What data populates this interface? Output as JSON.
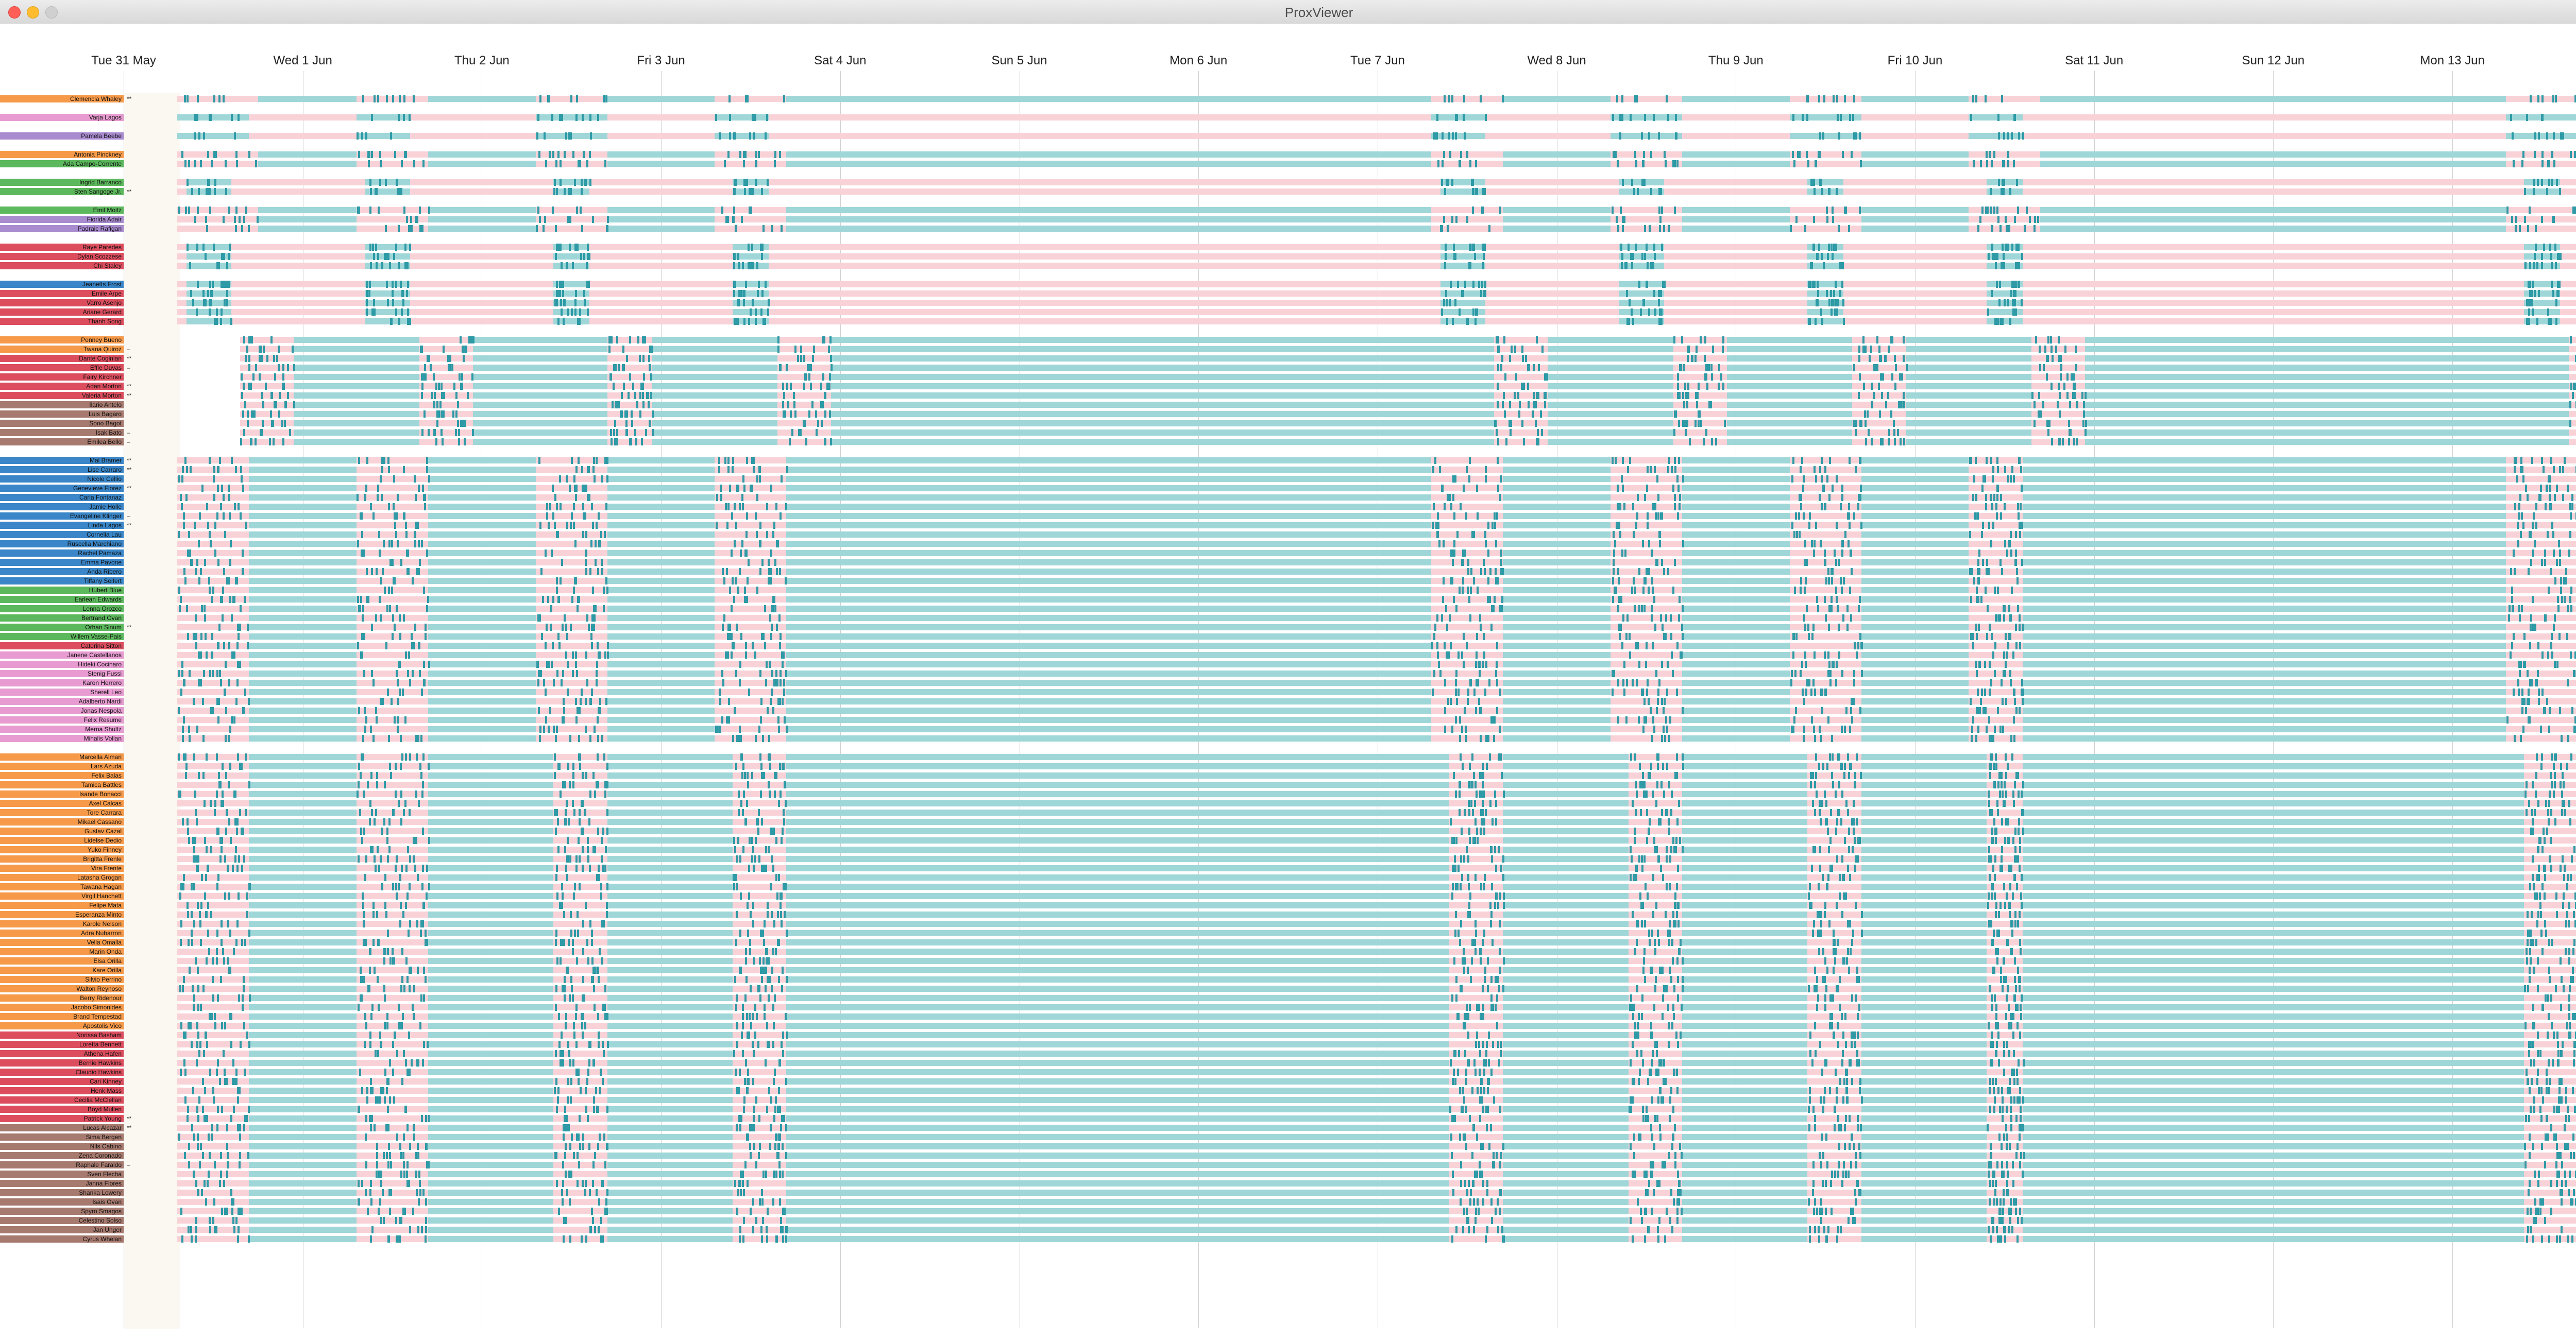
{
  "window": {
    "title": "ProxViewer"
  },
  "timeline": {
    "dates": [
      "Tue 31 May",
      "Wed 1 Jun",
      "Thu 2 Jun",
      "Fri 3 Jun",
      "Sat 4 Jun",
      "Sun 5 Jun",
      "Mon 6 Jun",
      "Tue 7 Jun",
      "Wed 8 Jun",
      "Thu 9 Jun",
      "Fri 10 Jun",
      "Sat 11 Jun",
      "Sun 12 Jun",
      "Mon 13 Jun"
    ],
    "colors": {
      "present": "#9fd6d8",
      "absent": "#f9d2d8",
      "contact": "#2d9aa6",
      "background": "#ffffff"
    }
  },
  "group_colors": {
    "orange": "#f69a4a",
    "pink": "#e79bd1",
    "purple": "#a98bd0",
    "green": "#5cb85c",
    "red": "#dc4e5e",
    "blue": "#3a86c8",
    "brown": "#a77a6f"
  },
  "groups": [
    {
      "rows": [
        {
          "name": "Clemencia Whaley",
          "color": "orange",
          "marker": "**",
          "pattern": "A"
        }
      ]
    },
    {
      "rows": [
        {
          "name": "Varja Lagos",
          "color": "pink",
          "marker": "",
          "pattern": "B"
        }
      ]
    },
    {
      "rows": [
        {
          "name": "Pamela Beebe",
          "color": "purple",
          "marker": "",
          "pattern": "B"
        }
      ]
    },
    {
      "rows": [
        {
          "name": "Antonia Pinckney",
          "color": "orange",
          "marker": "",
          "pattern": "A"
        },
        {
          "name": "Ada Campo-Corrente",
          "color": "green",
          "marker": "",
          "pattern": "A"
        }
      ]
    },
    {
      "rows": [
        {
          "name": "Ingrid Barranco",
          "color": "green",
          "marker": "",
          "pattern": "C"
        },
        {
          "name": "Sten Sangoge Jr.",
          "color": "green",
          "marker": "**",
          "pattern": "C"
        }
      ]
    },
    {
      "rows": [
        {
          "name": "Emil Moitz",
          "color": "green",
          "marker": "",
          "pattern": "A"
        },
        {
          "name": "Fiorida Adair",
          "color": "purple",
          "marker": "",
          "pattern": "A"
        },
        {
          "name": "Padraic Rafigan",
          "color": "purple",
          "marker": "",
          "pattern": "A"
        }
      ]
    },
    {
      "rows": [
        {
          "name": "Raye Paredes",
          "color": "red",
          "marker": "",
          "pattern": "C"
        },
        {
          "name": "Dylan Scozzese",
          "color": "red",
          "marker": "",
          "pattern": "C"
        },
        {
          "name": "Chi Staley",
          "color": "red",
          "marker": "",
          "pattern": "C"
        }
      ]
    },
    {
      "rows": [
        {
          "name": "Jeanetts Frost",
          "color": "blue",
          "marker": "",
          "pattern": "C"
        },
        {
          "name": "Emile Arpe",
          "color": "red",
          "marker": "",
          "pattern": "C"
        },
        {
          "name": "Varro Asenjo",
          "color": "red",
          "marker": "",
          "pattern": "C"
        },
        {
          "name": "Ariane Gerard",
          "color": "red",
          "marker": "",
          "pattern": "C"
        },
        {
          "name": "Thanh Song",
          "color": "red",
          "marker": "",
          "pattern": "C"
        }
      ]
    },
    {
      "rows": [
        {
          "name": "Penney Bueno",
          "color": "orange",
          "marker": "",
          "pattern": "D"
        },
        {
          "name": "Twana Quiroz",
          "color": "orange",
          "marker": "–",
          "pattern": "D"
        },
        {
          "name": "Dante Coginian",
          "color": "red",
          "marker": "**",
          "pattern": "D"
        },
        {
          "name": "Effie Duvas",
          "color": "red",
          "marker": "–",
          "pattern": "D"
        },
        {
          "name": "Fairy Kirchner",
          "color": "red",
          "marker": "",
          "pattern": "D"
        },
        {
          "name": "Adan Morton",
          "color": "red",
          "marker": "**",
          "pattern": "D"
        },
        {
          "name": "Valeria Morton",
          "color": "red",
          "marker": "**",
          "pattern": "D"
        },
        {
          "name": "Ilario Antelo",
          "color": "brown",
          "marker": "",
          "pattern": "D"
        },
        {
          "name": "Luis Bagaro",
          "color": "brown",
          "marker": "",
          "pattern": "D"
        },
        {
          "name": "Sono Bagot",
          "color": "brown",
          "marker": "",
          "pattern": "D"
        },
        {
          "name": "Isak Bato",
          "color": "brown",
          "marker": "–",
          "pattern": "D"
        },
        {
          "name": "Emilea Bello",
          "color": "brown",
          "marker": "–",
          "pattern": "D"
        }
      ]
    },
    {
      "rows": [
        {
          "name": "Mai Bramer",
          "color": "blue",
          "marker": "**",
          "pattern": "E"
        },
        {
          "name": "Lise Carraro",
          "color": "blue",
          "marker": "**",
          "pattern": "E"
        },
        {
          "name": "Nicole Cellio",
          "color": "blue",
          "marker": "",
          "pattern": "E"
        },
        {
          "name": "Genevieve Florez",
          "color": "blue",
          "marker": "**",
          "pattern": "E"
        },
        {
          "name": "Carla Fontanaz",
          "color": "blue",
          "marker": "",
          "pattern": "E"
        },
        {
          "name": "Jamie Holle",
          "color": "blue",
          "marker": "",
          "pattern": "E"
        },
        {
          "name": "Evangeline Klinger",
          "color": "blue",
          "marker": "–",
          "pattern": "E"
        },
        {
          "name": "Linda Lagos",
          "color": "blue",
          "marker": "**",
          "pattern": "E"
        },
        {
          "name": "Cornelia Lau",
          "color": "blue",
          "marker": "",
          "pattern": "E"
        },
        {
          "name": "Ruscella Marchiano",
          "color": "blue",
          "marker": "",
          "pattern": "E"
        },
        {
          "name": "Rachel Pamaza",
          "color": "blue",
          "marker": "",
          "pattern": "E"
        },
        {
          "name": "Emma Pavone",
          "color": "blue",
          "marker": "",
          "pattern": "E"
        },
        {
          "name": "Anda Ribero",
          "color": "blue",
          "marker": "",
          "pattern": "E"
        },
        {
          "name": "Tiffany Seifert",
          "color": "blue",
          "marker": "",
          "pattern": "E"
        },
        {
          "name": "Hubert Blue",
          "color": "green",
          "marker": "",
          "pattern": "E"
        },
        {
          "name": "Earlean Edwards",
          "color": "green",
          "marker": "",
          "pattern": "E"
        },
        {
          "name": "Lenna Orozco",
          "color": "green",
          "marker": "",
          "pattern": "E"
        },
        {
          "name": "Bertrand Ovan",
          "color": "green",
          "marker": "",
          "pattern": "E"
        },
        {
          "name": "Orhan Sinum",
          "color": "green",
          "marker": "**",
          "pattern": "E"
        },
        {
          "name": "Willem Vasse-Pais",
          "color": "green",
          "marker": "",
          "pattern": "E"
        },
        {
          "name": "Caterina Sitton",
          "color": "red",
          "marker": "",
          "pattern": "E"
        },
        {
          "name": "Janene Castellanos",
          "color": "pink",
          "marker": "",
          "pattern": "E"
        },
        {
          "name": "Hideki Cocinaro",
          "color": "pink",
          "marker": "",
          "pattern": "E"
        },
        {
          "name": "Stenig Fussi",
          "color": "pink",
          "marker": "",
          "pattern": "E"
        },
        {
          "name": "Karon Herrero",
          "color": "pink",
          "marker": "",
          "pattern": "E"
        },
        {
          "name": "Sherell Leo",
          "color": "pink",
          "marker": "",
          "pattern": "E"
        },
        {
          "name": "Adalberto Nardi",
          "color": "pink",
          "marker": "",
          "pattern": "E"
        },
        {
          "name": "Jonas Nespola",
          "color": "pink",
          "marker": "",
          "pattern": "E"
        },
        {
          "name": "Felix Resume",
          "color": "pink",
          "marker": "",
          "pattern": "E"
        },
        {
          "name": "Merna Shultz",
          "color": "pink",
          "marker": "",
          "pattern": "E"
        },
        {
          "name": "Mihalis Vollan",
          "color": "pink",
          "marker": "",
          "pattern": "E"
        }
      ]
    },
    {
      "rows": [
        {
          "name": "Marcella Almari",
          "color": "orange",
          "marker": "",
          "pattern": "F"
        },
        {
          "name": "Lars Azuda",
          "color": "orange",
          "marker": "",
          "pattern": "F"
        },
        {
          "name": "Felix Balas",
          "color": "orange",
          "marker": "",
          "pattern": "F"
        },
        {
          "name": "Tamica Battles",
          "color": "orange",
          "marker": "",
          "pattern": "F"
        },
        {
          "name": "Isande Bonacci",
          "color": "orange",
          "marker": "",
          "pattern": "F"
        },
        {
          "name": "Axel Calcas",
          "color": "orange",
          "marker": "",
          "pattern": "F"
        },
        {
          "name": "Tore Carrara",
          "color": "orange",
          "marker": "",
          "pattern": "F"
        },
        {
          "name": "Mikael Cassano",
          "color": "orange",
          "marker": "",
          "pattern": "F"
        },
        {
          "name": "Gustav Cazal",
          "color": "orange",
          "marker": "",
          "pattern": "F"
        },
        {
          "name": "Lidelse Dedio",
          "color": "orange",
          "marker": "",
          "pattern": "F"
        },
        {
          "name": "Yuko Finney",
          "color": "orange",
          "marker": "",
          "pattern": "F"
        },
        {
          "name": "Brigitta Frenle",
          "color": "orange",
          "marker": "",
          "pattern": "F"
        },
        {
          "name": "Vira Frente",
          "color": "orange",
          "marker": "",
          "pattern": "F"
        },
        {
          "name": "Latasha Grogan",
          "color": "orange",
          "marker": "",
          "pattern": "F"
        },
        {
          "name": "Tawana Hagan",
          "color": "orange",
          "marker": "",
          "pattern": "F"
        },
        {
          "name": "Virgil Hanchett",
          "color": "orange",
          "marker": "",
          "pattern": "F"
        },
        {
          "name": "Felipe Mata",
          "color": "orange",
          "marker": "",
          "pattern": "F"
        },
        {
          "name": "Esperanza Minto",
          "color": "orange",
          "marker": "",
          "pattern": "F"
        },
        {
          "name": "Karole Nelson",
          "color": "orange",
          "marker": "",
          "pattern": "F"
        },
        {
          "name": "Adra Nubarron",
          "color": "orange",
          "marker": "",
          "pattern": "F"
        },
        {
          "name": "Vella Omalla",
          "color": "orange",
          "marker": "",
          "pattern": "F"
        },
        {
          "name": "Marin Onda",
          "color": "orange",
          "marker": "",
          "pattern": "F"
        },
        {
          "name": "Elsa Orilla",
          "color": "orange",
          "marker": "",
          "pattern": "F"
        },
        {
          "name": "Kare Orilla",
          "color": "orange",
          "marker": "",
          "pattern": "F"
        },
        {
          "name": "Silvio Perrino",
          "color": "orange",
          "marker": "",
          "pattern": "F"
        },
        {
          "name": "Walton Reynoso",
          "color": "orange",
          "marker": "",
          "pattern": "F"
        },
        {
          "name": "Berry Ridenour",
          "color": "orange",
          "marker": "",
          "pattern": "F"
        },
        {
          "name": "Jacobo Simonides",
          "color": "orange",
          "marker": "",
          "pattern": "F"
        },
        {
          "name": "Brand Tempestad",
          "color": "orange",
          "marker": "",
          "pattern": "F"
        },
        {
          "name": "Apostolis Vico",
          "color": "orange",
          "marker": "",
          "pattern": "F"
        },
        {
          "name": "Norissa Basham",
          "color": "red",
          "marker": "",
          "pattern": "F"
        },
        {
          "name": "Loretta Bennett",
          "color": "red",
          "marker": "",
          "pattern": "F"
        },
        {
          "name": "Athena Hafen",
          "color": "red",
          "marker": "",
          "pattern": "F"
        },
        {
          "name": "Bernie Hawkins",
          "color": "red",
          "marker": "",
          "pattern": "F"
        },
        {
          "name": "Claudio Hawkins",
          "color": "red",
          "marker": "",
          "pattern": "F"
        },
        {
          "name": "Cari Kinney",
          "color": "red",
          "marker": "",
          "pattern": "F"
        },
        {
          "name": "Henk Mass",
          "color": "red",
          "marker": "",
          "pattern": "F"
        },
        {
          "name": "Cecilia McClellan",
          "color": "red",
          "marker": "",
          "pattern": "F"
        },
        {
          "name": "Boyd Mullen",
          "color": "red",
          "marker": "",
          "pattern": "F"
        },
        {
          "name": "Patrick Young",
          "color": "red",
          "marker": "**",
          "pattern": "F"
        },
        {
          "name": "Lucas Alcazar",
          "color": "brown",
          "marker": "**",
          "pattern": "F"
        },
        {
          "name": "Sima Bergen",
          "color": "brown",
          "marker": "",
          "pattern": "F"
        },
        {
          "name": "Nils Cabino",
          "color": "brown",
          "marker": "",
          "pattern": "F"
        },
        {
          "name": "Zena Coronado",
          "color": "brown",
          "marker": "",
          "pattern": "F"
        },
        {
          "name": "Raphale Faraldo",
          "color": "brown",
          "marker": "–",
          "pattern": "F"
        },
        {
          "name": "Sven Flecha",
          "color": "brown",
          "marker": "",
          "pattern": "F"
        },
        {
          "name": "Janna Flores",
          "color": "brown",
          "marker": "",
          "pattern": "F"
        },
        {
          "name": "Shanka Lowery",
          "color": "brown",
          "marker": "",
          "pattern": "F"
        },
        {
          "name": "Isais Ovan",
          "color": "brown",
          "marker": "",
          "pattern": "F"
        },
        {
          "name": "Spyro Smagos",
          "color": "brown",
          "marker": "",
          "pattern": "F"
        },
        {
          "name": "Celestino Solso",
          "color": "brown",
          "marker": "",
          "pattern": "F"
        },
        {
          "name": "Jan Unger",
          "color": "brown",
          "marker": "",
          "pattern": "F"
        },
        {
          "name": "Cyrus Whelan",
          "color": "brown",
          "marker": "",
          "pattern": "F"
        }
      ]
    }
  ]
}
